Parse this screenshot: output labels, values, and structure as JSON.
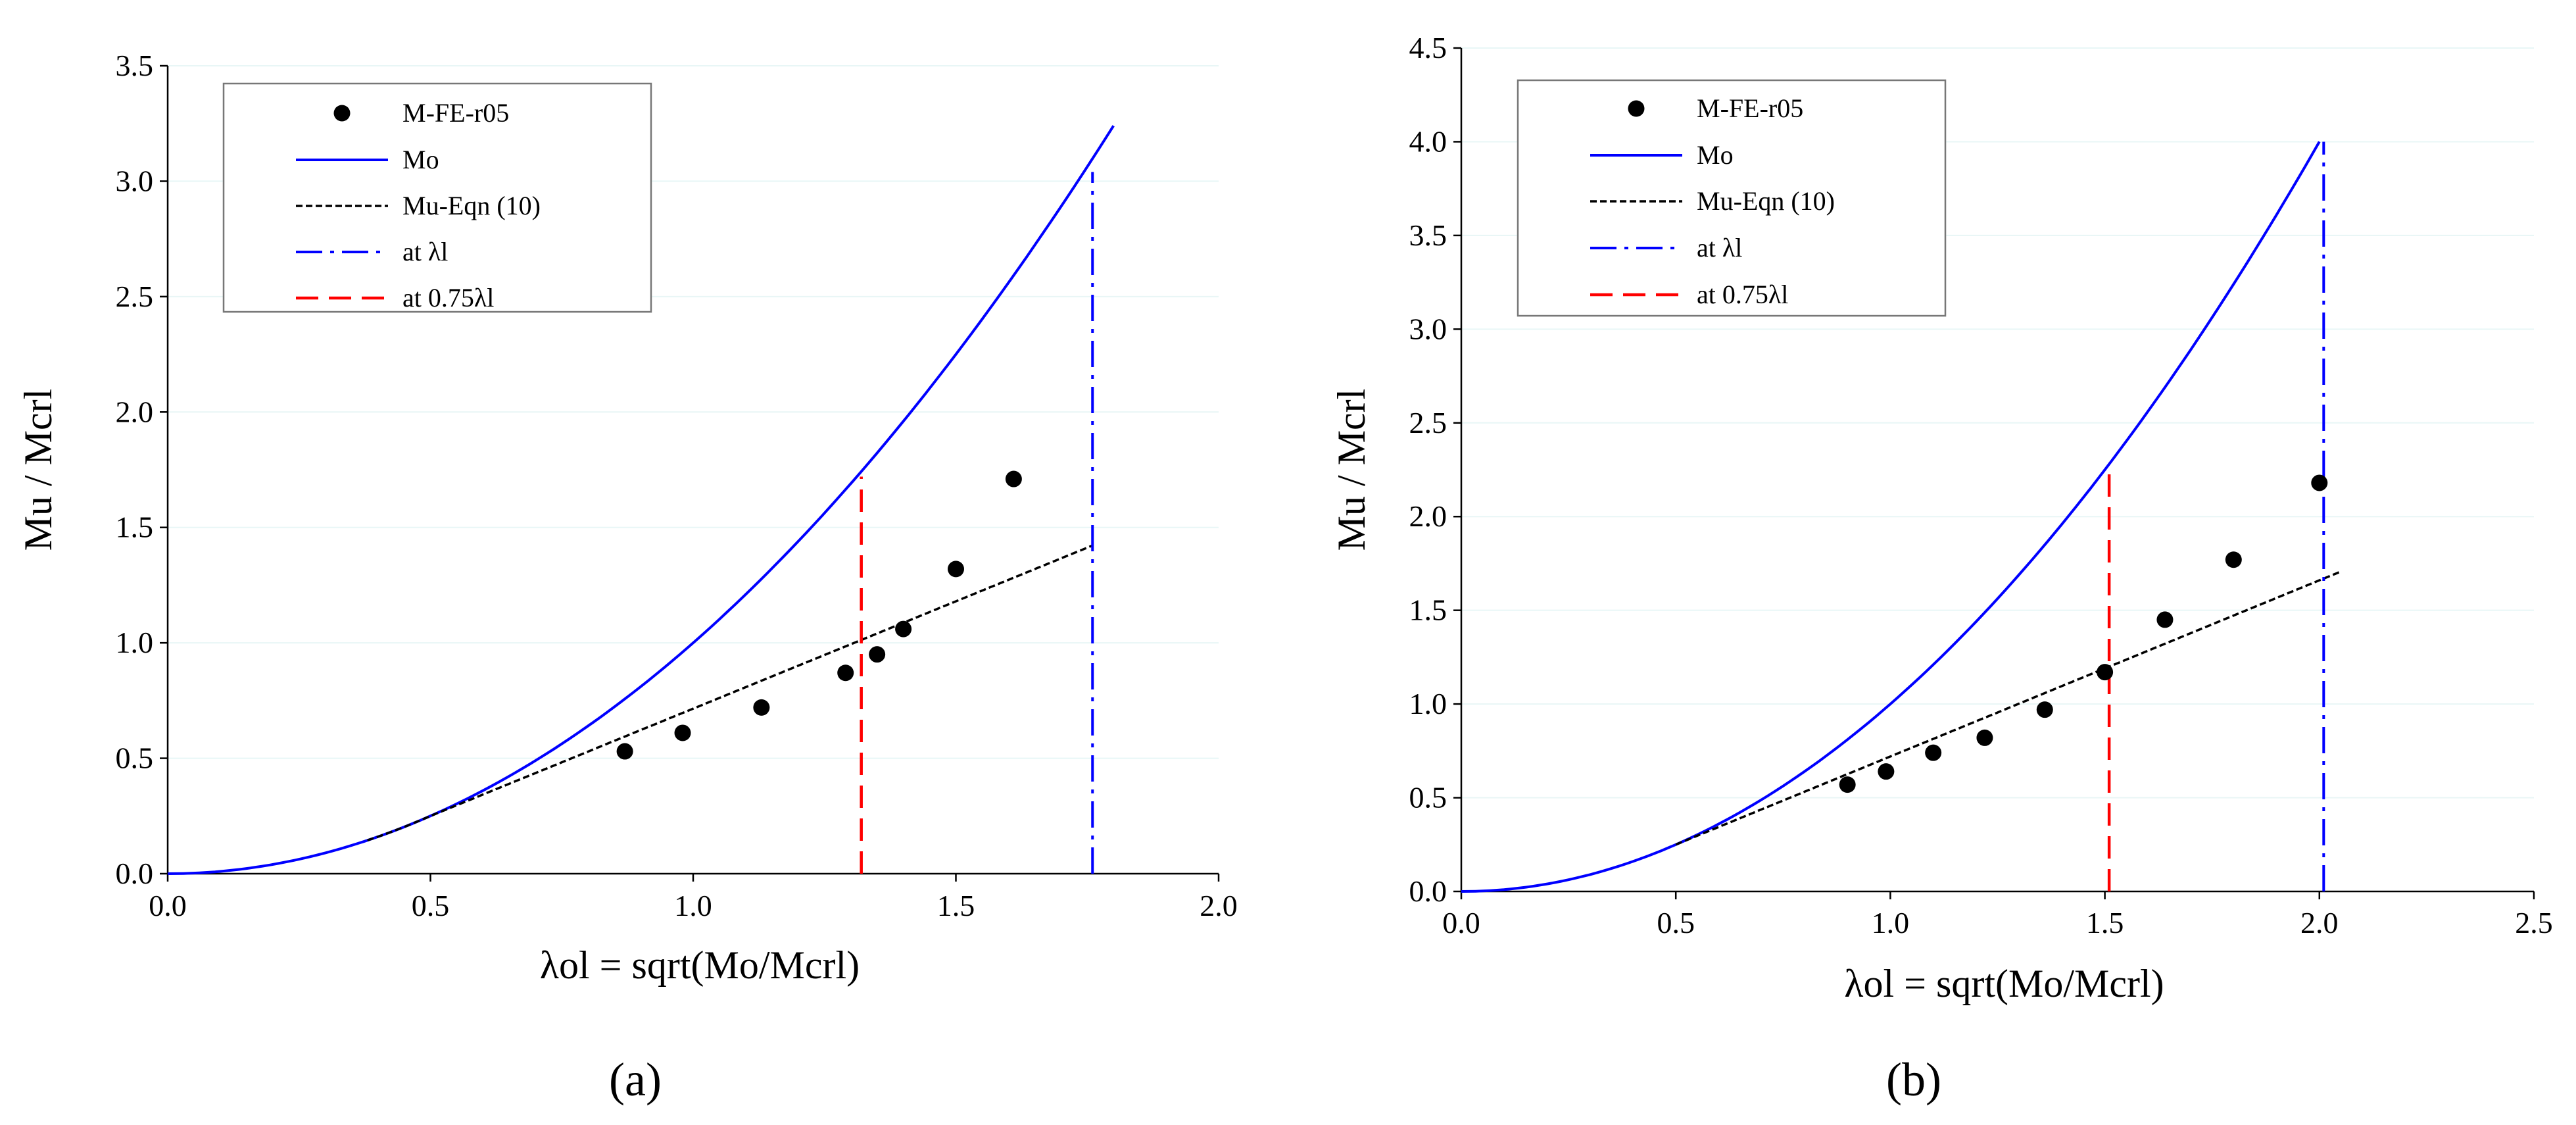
{
  "figure": {
    "caption_a": "(a)",
    "caption_b": "(b)"
  },
  "chart_data": [
    {
      "panel": "a",
      "type": "line",
      "title": "",
      "xlabel": "λol = sqrt(Mo/Mcrl)",
      "ylabel": "Mu / Mcrl",
      "xlim": [
        0,
        2.0
      ],
      "ylim": [
        0,
        3.5
      ],
      "xticks": [
        0,
        0.5,
        1.0,
        1.5,
        2.0
      ],
      "xtick_labels": [
        "0.0",
        "0.5",
        "1.0",
        "1.5",
        "2.0"
      ],
      "yticks": [
        0,
        0.5,
        1.0,
        1.5,
        2.0,
        2.5,
        3.0,
        3.5
      ],
      "ytick_labels": [
        "0.0",
        "0.5",
        "1.0",
        "1.5",
        "2.0",
        "2.5",
        "3.0",
        "3.5"
      ],
      "grid": "horizontal",
      "legend_position": "top-left",
      "series": [
        {
          "name": "M-FE-r05",
          "kind": "scatter",
          "color": "#000000",
          "x": [
            0.87,
            0.98,
            1.13,
            1.29,
            1.35,
            1.4,
            1.5,
            1.61
          ],
          "y": [
            0.53,
            0.61,
            0.72,
            0.87,
            0.95,
            1.06,
            1.32,
            1.71
          ]
        },
        {
          "name": "Mo",
          "kind": "curve",
          "formula": "y = x^2",
          "x_range": [
            0,
            1.8
          ],
          "color": "#0000ff"
        },
        {
          "name": "Mu-Eqn (10)",
          "kind": "curve",
          "formula": "eqn10",
          "x_range": [
            0.38,
            1.76
          ],
          "color": "#000000"
        },
        {
          "name": "at λl",
          "kind": "vline",
          "x": 1.76,
          "y_top": 3.04,
          "color": "#0000ff"
        },
        {
          "name": "at 0.75λl",
          "kind": "vline",
          "x": 1.32,
          "y_top": 1.72,
          "color": "#ff0000"
        }
      ]
    },
    {
      "panel": "b",
      "type": "line",
      "title": "",
      "xlabel": "λol = sqrt(Mo/Mcrl)",
      "ylabel": "Mu / Mcrl",
      "xlim": [
        0,
        2.5
      ],
      "ylim": [
        0,
        4.5
      ],
      "xticks": [
        0,
        0.5,
        1.0,
        1.5,
        2.0,
        2.5
      ],
      "xtick_labels": [
        "0.0",
        "0.5",
        "1.0",
        "1.5",
        "2.0",
        "2.5"
      ],
      "yticks": [
        0,
        0.5,
        1.0,
        1.5,
        2.0,
        2.5,
        3.0,
        3.5,
        4.0,
        4.5
      ],
      "ytick_labels": [
        "0.0",
        "0.5",
        "1.0",
        "1.5",
        "2.0",
        "2.5",
        "3.0",
        "3.5",
        "4.0",
        "4.5"
      ],
      "grid": "horizontal",
      "legend_position": "top-left",
      "series": [
        {
          "name": "M-FE-r05",
          "kind": "scatter",
          "color": "#000000",
          "x": [
            0.9,
            0.99,
            1.1,
            1.22,
            1.36,
            1.5,
            1.64,
            1.8,
            2.0
          ],
          "y": [
            0.57,
            0.64,
            0.74,
            0.82,
            0.97,
            1.17,
            1.45,
            1.77,
            2.18
          ]
        },
        {
          "name": "Mo",
          "kind": "curve",
          "formula": "y = x^2",
          "x_range": [
            0,
            2.0
          ],
          "color": "#0000ff"
        },
        {
          "name": "Mu-Eqn (10)",
          "kind": "curve",
          "formula": "eqn10",
          "x_range": [
            0.5,
            2.05
          ],
          "color": "#000000"
        },
        {
          "name": "at λl",
          "kind": "vline",
          "x": 2.01,
          "y_top": 4.0,
          "color": "#0000ff"
        },
        {
          "name": "at 0.75λl",
          "kind": "vline",
          "x": 1.51,
          "y_top": 2.25,
          "color": "#ff0000"
        }
      ]
    }
  ]
}
